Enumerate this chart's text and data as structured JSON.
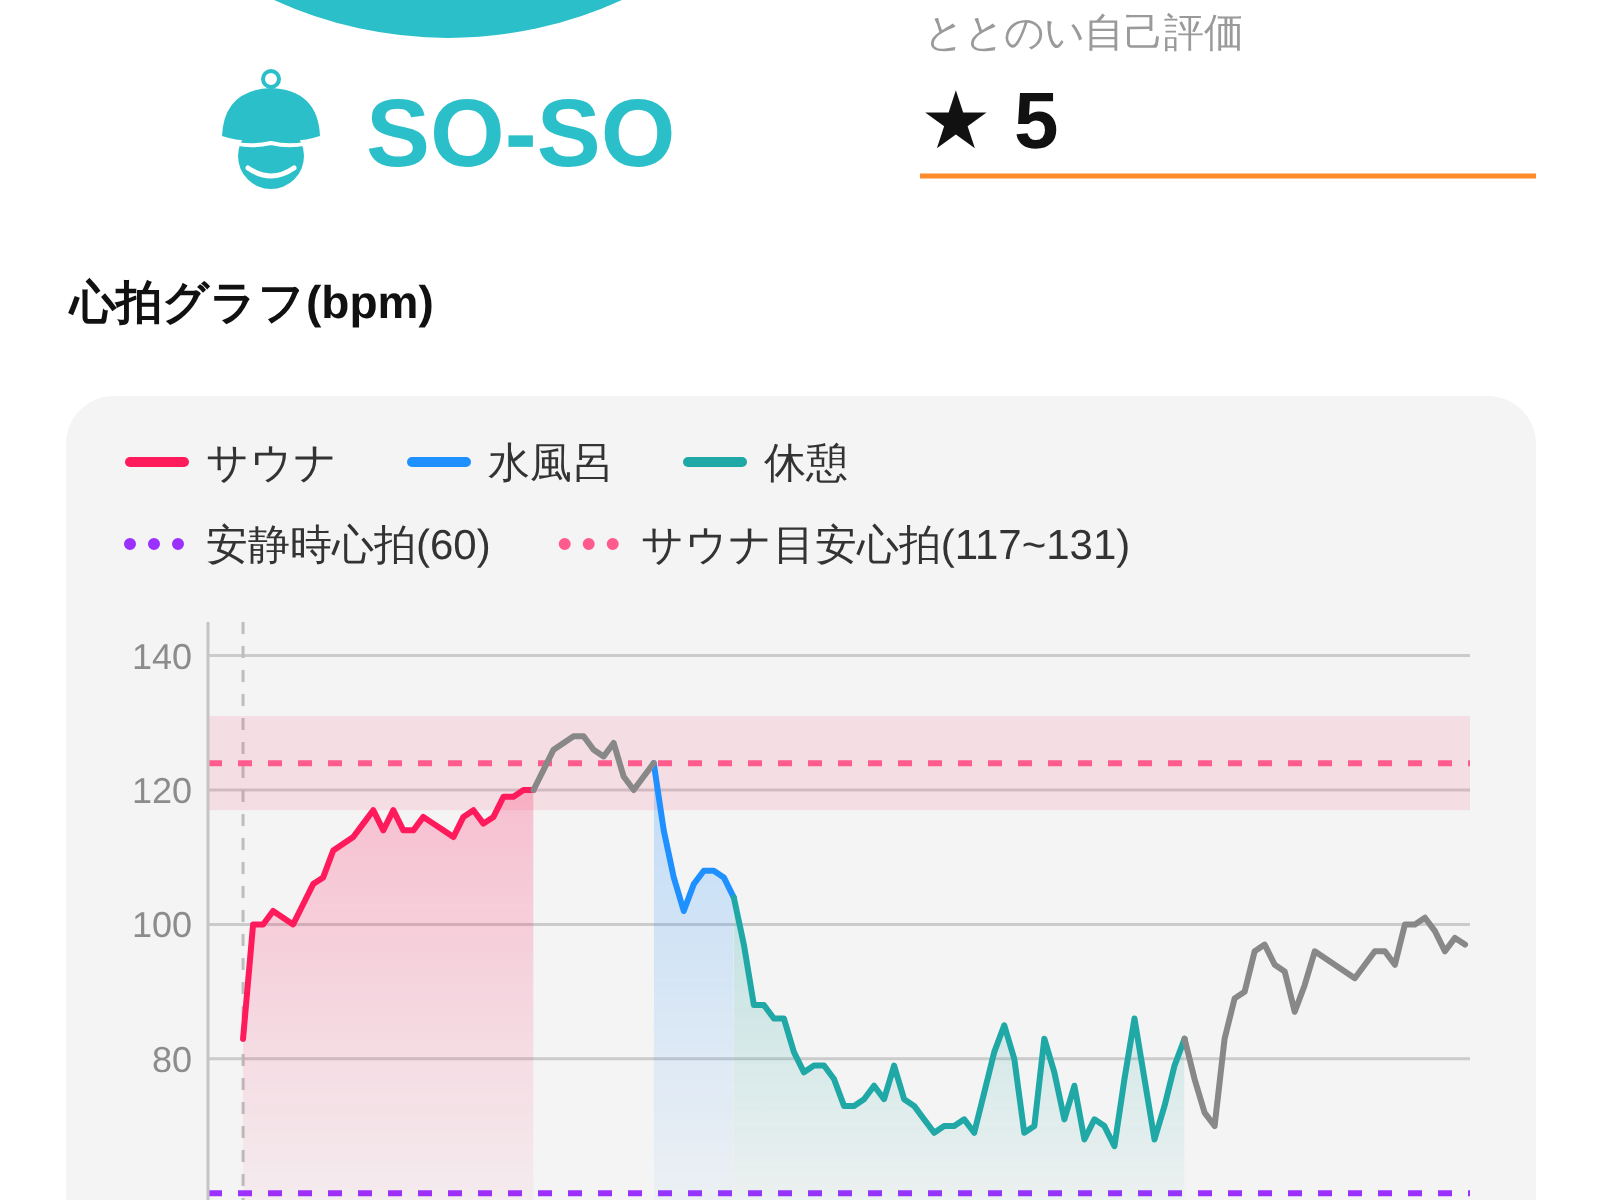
{
  "chart_data": [
    {
      "type": "other",
      "title": "SO-SO"
    },
    {
      "type": "other",
      "title": "ととのい自己評価",
      "annotations": [
        "★ 5"
      ]
    },
    {
      "type": "area",
      "title": "心拍グラフ(bpm)",
      "categories": [
        null,
        null,
        null,
        null,
        null,
        null,
        null,
        null,
        null,
        null,
        null,
        null,
        null,
        null,
        null,
        null,
        null,
        null,
        null,
        null,
        null,
        null,
        null,
        null,
        null,
        null,
        null,
        null,
        null,
        null,
        null,
        null,
        null,
        null,
        null,
        null,
        null,
        null,
        null,
        null,
        null,
        null,
        null,
        null,
        null,
        null,
        null,
        null,
        null,
        null,
        null,
        null,
        null,
        null,
        null,
        null,
        null,
        null,
        null,
        null,
        null,
        null,
        null,
        null,
        null,
        null,
        null,
        null,
        null,
        null,
        null,
        null,
        null,
        null,
        null,
        null,
        null,
        null,
        null,
        null,
        null,
        null,
        null,
        null,
        null,
        null,
        null,
        null,
        null,
        null,
        null,
        null,
        null,
        null,
        null,
        null,
        null,
        null,
        null,
        null,
        null,
        null,
        null,
        null,
        null,
        null,
        null,
        null,
        null,
        null,
        null,
        null,
        null,
        null,
        null,
        null,
        null,
        null,
        null,
        null,
        null,
        null,
        null,
        null,
        null,
        null
      ],
      "series": [
        {
          "name": "サウナ",
          "color": "#ff1a5c",
          "values": [
            null,
            null,
            null,
            83,
            100,
            100,
            102,
            101,
            100,
            103,
            106,
            107,
            111,
            112,
            113,
            115,
            117,
            114,
            117,
            114,
            114,
            116,
            115,
            114,
            113,
            116,
            117,
            115,
            116,
            119,
            119,
            120,
            120,
            null,
            null,
            null,
            null,
            null,
            null,
            null,
            null,
            null,
            null,
            null,
            null,
            null,
            null,
            null,
            null,
            null,
            null,
            null,
            null,
            null,
            null,
            null,
            null,
            null,
            null,
            null,
            null,
            null,
            null,
            null,
            null,
            null,
            null,
            null,
            null,
            null,
            null,
            null,
            null,
            null,
            null,
            null,
            null,
            null,
            null,
            null,
            null,
            null,
            null,
            null,
            null,
            null,
            null,
            null,
            null,
            null,
            null,
            null,
            null,
            null,
            null,
            null,
            null,
            null,
            null,
            null,
            null,
            null,
            null,
            null,
            null,
            null,
            null,
            null,
            null,
            null,
            null,
            null,
            null,
            null,
            null,
            null,
            null,
            null,
            null,
            null,
            null,
            null,
            null,
            null,
            null,
            null
          ]
        },
        {
          "name": "水風呂",
          "color": "#1e90ff",
          "values": [
            null,
            null,
            null,
            null,
            null,
            null,
            null,
            null,
            null,
            null,
            null,
            null,
            null,
            null,
            null,
            null,
            null,
            null,
            null,
            null,
            null,
            null,
            null,
            null,
            null,
            null,
            null,
            null,
            null,
            null,
            null,
            null,
            null,
            null,
            null,
            null,
            null,
            null,
            null,
            null,
            null,
            null,
            null,
            null,
            124,
            114,
            107,
            102,
            106,
            108,
            108,
            107,
            104,
            null,
            null,
            null,
            null,
            null,
            null,
            null,
            null,
            null,
            null,
            null,
            null,
            null,
            null,
            null,
            null,
            null,
            null,
            null,
            null,
            null,
            null,
            null,
            null,
            null,
            null,
            null,
            null,
            null,
            null,
            null,
            null,
            null,
            null,
            null,
            null,
            null,
            null,
            null,
            null,
            null,
            null,
            null,
            null,
            null,
            null,
            null,
            null,
            null,
            null,
            null,
            null,
            null,
            null,
            null,
            null,
            null,
            null,
            null,
            null,
            null,
            null,
            null,
            null,
            null,
            null,
            null,
            null,
            null,
            null,
            null,
            null,
            null
          ]
        },
        {
          "name": "休憩",
          "color": "#1fa8a5",
          "values": [
            null,
            null,
            null,
            null,
            null,
            null,
            null,
            null,
            null,
            null,
            null,
            null,
            null,
            null,
            null,
            null,
            null,
            null,
            null,
            null,
            null,
            null,
            null,
            null,
            null,
            null,
            null,
            null,
            null,
            null,
            null,
            null,
            null,
            null,
            null,
            null,
            null,
            null,
            null,
            null,
            null,
            null,
            null,
            null,
            null,
            null,
            null,
            null,
            null,
            null,
            null,
            null,
            104,
            97,
            88,
            88,
            86,
            86,
            81,
            78,
            79,
            79,
            77,
            73,
            73,
            74,
            76,
            74,
            79,
            74,
            73,
            71,
            69,
            70,
            70,
            71,
            69,
            75,
            81,
            85,
            80,
            69,
            70,
            83,
            78,
            71,
            76,
            68,
            71,
            70,
            67,
            77,
            86,
            77,
            68,
            73,
            79,
            83,
            null,
            null,
            null,
            null,
            null,
            null,
            null,
            null,
            null,
            null,
            null,
            null,
            null,
            null,
            null,
            null,
            null,
            null,
            null,
            null,
            null,
            null,
            null,
            null,
            null,
            null,
            null,
            null
          ]
        },
        {
          "type": "line",
          "color": "#888888",
          "values": [
            null,
            null,
            null,
            null,
            null,
            null,
            null,
            null,
            null,
            null,
            null,
            null,
            null,
            null,
            null,
            null,
            null,
            null,
            null,
            null,
            null,
            null,
            null,
            null,
            null,
            null,
            null,
            null,
            null,
            null,
            null,
            null,
            120,
            123,
            126,
            127,
            128,
            128,
            126,
            125,
            127,
            122,
            120,
            122,
            124,
            null,
            null,
            null,
            null,
            null,
            null,
            null,
            null,
            null,
            null,
            null,
            null,
            null,
            null,
            null,
            null,
            null,
            null,
            null,
            null,
            null,
            null,
            null,
            null,
            null,
            null,
            null,
            null,
            null,
            null,
            null,
            null,
            null,
            null,
            null,
            null,
            null,
            null,
            null,
            null,
            null,
            null,
            null,
            null,
            null,
            null,
            null,
            null,
            null,
            null,
            null,
            null,
            83,
            77,
            72,
            70,
            83,
            89,
            90,
            96,
            97,
            94,
            93,
            87,
            91,
            96,
            95,
            94,
            93,
            92,
            94,
            96,
            96,
            94,
            100,
            100,
            101,
            99,
            96,
            98,
            97
          ]
        }
      ],
      "ylim": [
        59,
        145
      ],
      "yticks": [
        80,
        100,
        120,
        140
      ],
      "grid": "y",
      "legend": "top",
      "tick_labels": "y",
      "ref_lines": [
        {
          "axis": "y",
          "value": 124,
          "color": "#ff5c8d",
          "line_style": "dashed"
        },
        {
          "axis": "y",
          "value": 60,
          "label": "安静時心拍(60)",
          "color": "#9b30ff",
          "line_style": "dashed"
        }
      ],
      "bands": [
        {
          "axis": "y",
          "from": 117,
          "to": 131,
          "label": "サウナ目安心拍(117~131)",
          "color": "#ff5c8d"
        }
      ]
    }
  ]
}
